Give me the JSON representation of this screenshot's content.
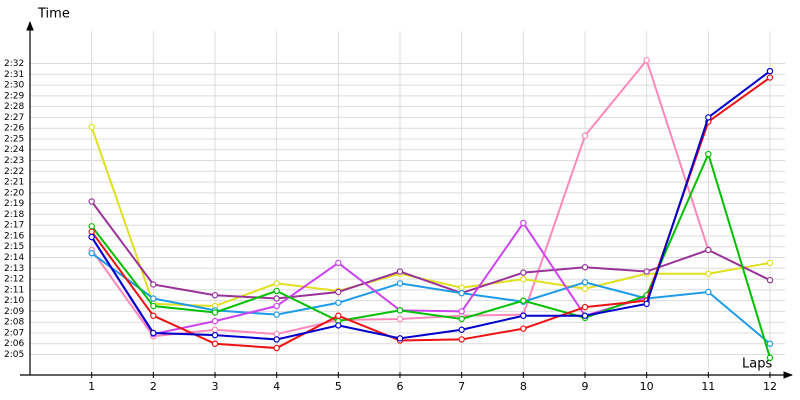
{
  "chart_data": {
    "type": "line",
    "y_label": "Time",
    "x_label": "Laps",
    "x": [
      1,
      2,
      3,
      4,
      5,
      6,
      7,
      8,
      9,
      10,
      11,
      12
    ],
    "xlim": [
      0,
      12.4
    ],
    "ylim": [
      123.1,
      155
    ],
    "yticks": [
      {
        "value": 125,
        "label": "2:05"
      },
      {
        "value": 126,
        "label": "2:06"
      },
      {
        "value": 127,
        "label": "2:07"
      },
      {
        "value": 128,
        "label": "2:08"
      },
      {
        "value": 129,
        "label": "2:09"
      },
      {
        "value": 130,
        "label": "2:10"
      },
      {
        "value": 131,
        "label": "2:11"
      },
      {
        "value": 132,
        "label": "2:12"
      },
      {
        "value": 133,
        "label": "2:13"
      },
      {
        "value": 134,
        "label": "2:14"
      },
      {
        "value": 135,
        "label": "2:15"
      },
      {
        "value": 136,
        "label": "2:16"
      },
      {
        "value": 137,
        "label": "2:17"
      },
      {
        "value": 138,
        "label": "2:18"
      },
      {
        "value": 139,
        "label": "2:19"
      },
      {
        "value": 140,
        "label": "2:20"
      },
      {
        "value": 141,
        "label": "2:21"
      },
      {
        "value": 142,
        "label": "2:22"
      },
      {
        "value": 143,
        "label": "2:23"
      },
      {
        "value": 144,
        "label": "2:24"
      },
      {
        "value": 145,
        "label": "2:25"
      },
      {
        "value": 146,
        "label": "2:26"
      },
      {
        "value": 147,
        "label": "2:27"
      },
      {
        "value": 148,
        "label": "2:28"
      },
      {
        "value": 149,
        "label": "2:29"
      },
      {
        "value": 150,
        "label": "2:30"
      },
      {
        "value": 151,
        "label": "2:31"
      },
      {
        "value": 152,
        "label": "2:32"
      }
    ],
    "grid": true,
    "series": [
      {
        "color": "#ff88bb",
        "values": [
          134.7,
          126.7,
          127.3,
          126.9,
          128.2,
          128.3,
          128.6,
          128.7,
          145.3,
          152.3,
          134.7,
          null
        ]
      },
      {
        "color": "#e0e020",
        "values": [
          146.1,
          129.7,
          129.5,
          131.6,
          130.9,
          132.5,
          131.2,
          132.0,
          131.1,
          132.5,
          132.5,
          133.5
        ]
      },
      {
        "color": "#993399",
        "values": [
          139.2,
          131.5,
          130.5,
          130.2,
          130.8,
          132.7,
          130.7,
          132.6,
          133.1,
          132.7,
          134.7,
          131.9
        ]
      },
      {
        "color": "#1e9be8",
        "values": [
          134.4,
          130.2,
          129.1,
          128.7,
          129.8,
          131.6,
          130.7,
          129.9,
          131.7,
          130.2,
          130.8,
          126.0
        ]
      },
      {
        "color": "#cc44ee",
        "values": [
          135.9,
          126.9,
          128.1,
          129.5,
          133.5,
          129.1,
          129.0,
          137.2,
          128.6,
          130.3,
          null,
          null
        ]
      },
      {
        "color": "#00c000",
        "values": [
          136.9,
          129.5,
          128.9,
          130.9,
          128.1,
          129.1,
          128.3,
          130.0,
          128.4,
          130.5,
          143.6,
          124.7
        ]
      },
      {
        "color": "#ee1111",
        "values": [
          136.4,
          128.6,
          126.0,
          125.6,
          128.6,
          126.3,
          126.4,
          127.4,
          129.4,
          130.0,
          146.6,
          150.7
        ]
      },
      {
        "color": "#0000cc",
        "values": [
          135.9,
          127.0,
          126.8,
          126.4,
          127.7,
          126.5,
          127.3,
          128.6,
          128.6,
          129.7,
          147.0,
          151.3
        ]
      }
    ]
  }
}
